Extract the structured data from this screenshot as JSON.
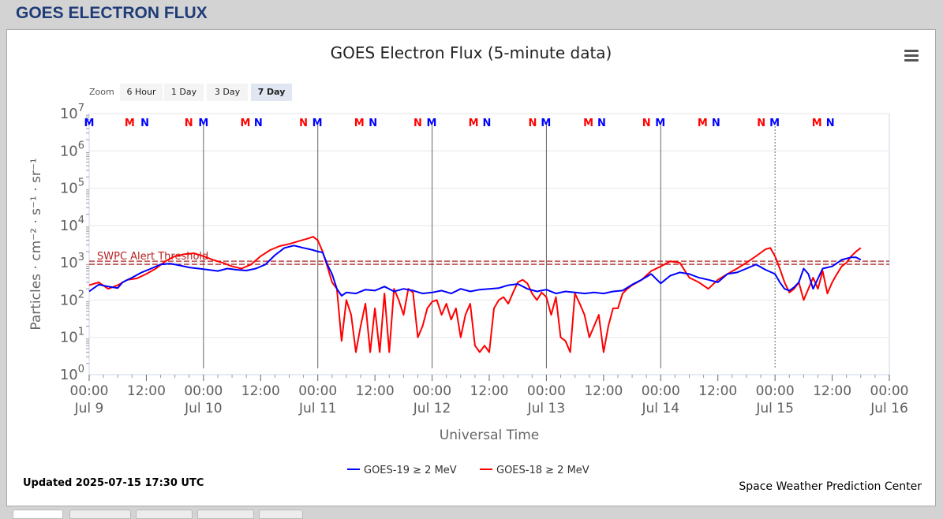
{
  "header": {
    "title": "GOES ELECTRON FLUX"
  },
  "zoom": {
    "label": "Zoom",
    "buttons": [
      "6 Hour",
      "1 Day",
      "3 Day",
      "7 Day"
    ],
    "active": "7 Day"
  },
  "footer": {
    "updated": "Updated 2025-07-15 17:30 UTC",
    "credit": "Space Weather Prediction Center"
  },
  "colors": {
    "goes19": "#0000ff",
    "goes18": "#ff0000",
    "threshold": "#b22222"
  },
  "icons": {
    "menu": "hamburger-menu-icon"
  },
  "chart_data": {
    "type": "line",
    "title": "GOES Electron Flux (5-minute data)",
    "xlabel": "Universal Time",
    "ylabel": "Particles · cm⁻² · s⁻¹ · sr⁻¹",
    "yscale": "log",
    "ylim": [
      1,
      10000000
    ],
    "y_ticks": [
      {
        "base": "10",
        "exp": "0"
      },
      {
        "base": "10",
        "exp": "1"
      },
      {
        "base": "10",
        "exp": "2"
      },
      {
        "base": "10",
        "exp": "3"
      },
      {
        "base": "10",
        "exp": "4"
      },
      {
        "base": "10",
        "exp": "5"
      },
      {
        "base": "10",
        "exp": "6"
      },
      {
        "base": "10",
        "exp": "7"
      }
    ],
    "xlim": [
      0,
      168
    ],
    "x_ticks": [
      {
        "h": 0,
        "time": "00:00",
        "date": "Jul 9"
      },
      {
        "h": 12,
        "time": "12:00",
        "date": ""
      },
      {
        "h": 24,
        "time": "00:00",
        "date": "Jul 10"
      },
      {
        "h": 36,
        "time": "12:00",
        "date": ""
      },
      {
        "h": 48,
        "time": "00:00",
        "date": "Jul 11"
      },
      {
        "h": 60,
        "time": "12:00",
        "date": ""
      },
      {
        "h": 72,
        "time": "00:00",
        "date": "Jul 12"
      },
      {
        "h": 84,
        "time": "12:00",
        "date": ""
      },
      {
        "h": 96,
        "time": "00:00",
        "date": "Jul 13"
      },
      {
        "h": 108,
        "time": "12:00",
        "date": ""
      },
      {
        "h": 120,
        "time": "00:00",
        "date": "Jul 14"
      },
      {
        "h": 132,
        "time": "12:00",
        "date": ""
      },
      {
        "h": 144,
        "time": "00:00",
        "date": "Jul 15"
      },
      {
        "h": 156,
        "time": "12:00",
        "date": ""
      },
      {
        "h": 168,
        "time": "00:00",
        "date": "Jul 16"
      }
    ],
    "day_lines": [
      24,
      48,
      72,
      96,
      120
    ],
    "dotted_lines": [
      144
    ],
    "threshold": {
      "label": "SWPC Alert Threshold",
      "value": 1000
    },
    "mn_markers": [
      {
        "h": 0,
        "label": "M",
        "sat": "goes19"
      },
      {
        "h": 8.5,
        "label": "M",
        "sat": "goes18"
      },
      {
        "h": 11.7,
        "label": "N",
        "sat": "goes19"
      },
      {
        "h": 20.9,
        "label": "N",
        "sat": "goes18"
      },
      {
        "h": 24,
        "label": "M",
        "sat": "goes19"
      },
      {
        "h": 32.8,
        "label": "M",
        "sat": "goes18"
      },
      {
        "h": 35.5,
        "label": "N",
        "sat": "goes19"
      },
      {
        "h": 45,
        "label": "N",
        "sat": "goes18"
      },
      {
        "h": 47.9,
        "label": "M",
        "sat": "goes19"
      },
      {
        "h": 56.7,
        "label": "M",
        "sat": "goes18"
      },
      {
        "h": 59.6,
        "label": "N",
        "sat": "goes19"
      },
      {
        "h": 69,
        "label": "N",
        "sat": "goes18"
      },
      {
        "h": 71.9,
        "label": "M",
        "sat": "goes19"
      },
      {
        "h": 80.7,
        "label": "M",
        "sat": "goes18"
      },
      {
        "h": 83.5,
        "label": "N",
        "sat": "goes19"
      },
      {
        "h": 93.1,
        "label": "N",
        "sat": "goes18"
      },
      {
        "h": 95.9,
        "label": "M",
        "sat": "goes19"
      },
      {
        "h": 104.8,
        "label": "M",
        "sat": "goes18"
      },
      {
        "h": 107.6,
        "label": "N",
        "sat": "goes19"
      },
      {
        "h": 117,
        "label": "N",
        "sat": "goes18"
      },
      {
        "h": 119.9,
        "label": "M",
        "sat": "goes19"
      },
      {
        "h": 128.8,
        "label": "M",
        "sat": "goes18"
      },
      {
        "h": 131.6,
        "label": "N",
        "sat": "goes19"
      },
      {
        "h": 141.1,
        "label": "N",
        "sat": "goes18"
      },
      {
        "h": 143.9,
        "label": "M",
        "sat": "goes19"
      },
      {
        "h": 152.8,
        "label": "M",
        "sat": "goes18"
      },
      {
        "h": 155.6,
        "label": "N",
        "sat": "goes19"
      }
    ],
    "series": [
      {
        "name": "GOES-19 ≥ 2 MeV",
        "color": "#0000ff",
        "points": [
          [
            0,
            170
          ],
          [
            2,
            260
          ],
          [
            4,
            230
          ],
          [
            6,
            210
          ],
          [
            7,
            300
          ],
          [
            9,
            400
          ],
          [
            11,
            550
          ],
          [
            13,
            700
          ],
          [
            15,
            900
          ],
          [
            17,
            950
          ],
          [
            19,
            850
          ],
          [
            21,
            750
          ],
          [
            23,
            700
          ],
          [
            25,
            650
          ],
          [
            27,
            600
          ],
          [
            29,
            700
          ],
          [
            31,
            650
          ],
          [
            33,
            620
          ],
          [
            35,
            700
          ],
          [
            37,
            900
          ],
          [
            39,
            1600
          ],
          [
            41,
            2500
          ],
          [
            43,
            2900
          ],
          [
            45,
            2500
          ],
          [
            47,
            2200
          ],
          [
            48,
            2000
          ],
          [
            49,
            1900
          ],
          [
            50,
            900
          ],
          [
            51,
            500
          ],
          [
            52,
            200
          ],
          [
            53,
            130
          ],
          [
            54,
            160
          ],
          [
            56,
            150
          ],
          [
            58,
            190
          ],
          [
            60,
            180
          ],
          [
            62,
            230
          ],
          [
            64,
            170
          ],
          [
            66,
            200
          ],
          [
            68,
            180
          ],
          [
            70,
            150
          ],
          [
            72,
            160
          ],
          [
            74,
            180
          ],
          [
            76,
            150
          ],
          [
            78,
            200
          ],
          [
            80,
            170
          ],
          [
            82,
            190
          ],
          [
            84,
            200
          ],
          [
            86,
            210
          ],
          [
            88,
            250
          ],
          [
            90,
            270
          ],
          [
            92,
            200
          ],
          [
            94,
            170
          ],
          [
            96,
            190
          ],
          [
            98,
            150
          ],
          [
            100,
            170
          ],
          [
            102,
            160
          ],
          [
            104,
            150
          ],
          [
            106,
            160
          ],
          [
            108,
            150
          ],
          [
            110,
            170
          ],
          [
            112,
            180
          ],
          [
            114,
            260
          ],
          [
            116,
            350
          ],
          [
            118,
            500
          ],
          [
            120,
            280
          ],
          [
            122,
            450
          ],
          [
            124,
            550
          ],
          [
            126,
            500
          ],
          [
            128,
            400
          ],
          [
            130,
            350
          ],
          [
            132,
            300
          ],
          [
            134,
            500
          ],
          [
            136,
            550
          ],
          [
            138,
            700
          ],
          [
            140,
            900
          ],
          [
            142,
            650
          ],
          [
            144,
            500
          ],
          [
            145,
            300
          ],
          [
            146,
            200
          ],
          [
            147,
            180
          ],
          [
            148,
            220
          ],
          [
            149,
            300
          ],
          [
            150,
            700
          ],
          [
            151,
            500
          ],
          [
            152,
            200
          ],
          [
            154,
            700
          ],
          [
            156,
            800
          ],
          [
            158,
            1200
          ],
          [
            160,
            1400
          ],
          [
            161,
            1400
          ],
          [
            162,
            1200
          ]
        ]
      },
      {
        "name": "GOES-18 ≥ 2 MeV",
        "color": "#ff0000",
        "points": [
          [
            0,
            250
          ],
          [
            2,
            300
          ],
          [
            4,
            200
          ],
          [
            6,
            250
          ],
          [
            8,
            350
          ],
          [
            10,
            380
          ],
          [
            12,
            500
          ],
          [
            14,
            700
          ],
          [
            16,
            1100
          ],
          [
            18,
            1500
          ],
          [
            20,
            1700
          ],
          [
            22,
            1800
          ],
          [
            24,
            1500
          ],
          [
            26,
            1200
          ],
          [
            28,
            1000
          ],
          [
            30,
            800
          ],
          [
            32,
            700
          ],
          [
            34,
            900
          ],
          [
            36,
            1500
          ],
          [
            38,
            2200
          ],
          [
            40,
            2800
          ],
          [
            42,
            3200
          ],
          [
            44,
            3800
          ],
          [
            46,
            4500
          ],
          [
            47,
            5000
          ],
          [
            48,
            4000
          ],
          [
            49,
            2000
          ],
          [
            50,
            800
          ],
          [
            51,
            300
          ],
          [
            52,
            200
          ],
          [
            53,
            8
          ],
          [
            54,
            100
          ],
          [
            55,
            40
          ],
          [
            56,
            4
          ],
          [
            57,
            20
          ],
          [
            58,
            80
          ],
          [
            59,
            4
          ],
          [
            60,
            60
          ],
          [
            61,
            4
          ],
          [
            62,
            150
          ],
          [
            63,
            4
          ],
          [
            64,
            200
          ],
          [
            65,
            100
          ],
          [
            66,
            40
          ],
          [
            67,
            200
          ],
          [
            68,
            160
          ],
          [
            69,
            10
          ],
          [
            70,
            20
          ],
          [
            71,
            60
          ],
          [
            72,
            90
          ],
          [
            73,
            100
          ],
          [
            74,
            40
          ],
          [
            75,
            80
          ],
          [
            76,
            30
          ],
          [
            77,
            60
          ],
          [
            78,
            10
          ],
          [
            79,
            40
          ],
          [
            80,
            80
          ],
          [
            81,
            6
          ],
          [
            82,
            4
          ],
          [
            83,
            6
          ],
          [
            84,
            4
          ],
          [
            85,
            60
          ],
          [
            86,
            100
          ],
          [
            87,
            120
          ],
          [
            88,
            80
          ],
          [
            89,
            160
          ],
          [
            90,
            300
          ],
          [
            91,
            350
          ],
          [
            92,
            280
          ],
          [
            93,
            150
          ],
          [
            94,
            100
          ],
          [
            95,
            160
          ],
          [
            96,
            120
          ],
          [
            97,
            40
          ],
          [
            98,
            120
          ],
          [
            99,
            10
          ],
          [
            100,
            8
          ],
          [
            101,
            4
          ],
          [
            102,
            150
          ],
          [
            103,
            80
          ],
          [
            104,
            40
          ],
          [
            105,
            10
          ],
          [
            106,
            20
          ],
          [
            107,
            40
          ],
          [
            108,
            4
          ],
          [
            109,
            20
          ],
          [
            110,
            60
          ],
          [
            111,
            60
          ],
          [
            112,
            150
          ],
          [
            113,
            200
          ],
          [
            114,
            250
          ],
          [
            116,
            350
          ],
          [
            118,
            600
          ],
          [
            120,
            800
          ],
          [
            122,
            1100
          ],
          [
            124,
            1000
          ],
          [
            126,
            400
          ],
          [
            128,
            300
          ],
          [
            130,
            200
          ],
          [
            132,
            350
          ],
          [
            134,
            500
          ],
          [
            136,
            700
          ],
          [
            138,
            1000
          ],
          [
            140,
            1500
          ],
          [
            142,
            2300
          ],
          [
            143,
            2500
          ],
          [
            144,
            1500
          ],
          [
            145,
            700
          ],
          [
            146,
            300
          ],
          [
            147,
            160
          ],
          [
            148,
            200
          ],
          [
            149,
            300
          ],
          [
            150,
            100
          ],
          [
            151,
            200
          ],
          [
            152,
            400
          ],
          [
            153,
            200
          ],
          [
            154,
            600
          ],
          [
            155,
            150
          ],
          [
            156,
            300
          ],
          [
            157,
            500
          ],
          [
            158,
            800
          ],
          [
            159,
            1000
          ],
          [
            160,
            1500
          ],
          [
            161,
            2000
          ],
          [
            162,
            2500
          ]
        ]
      }
    ]
  }
}
